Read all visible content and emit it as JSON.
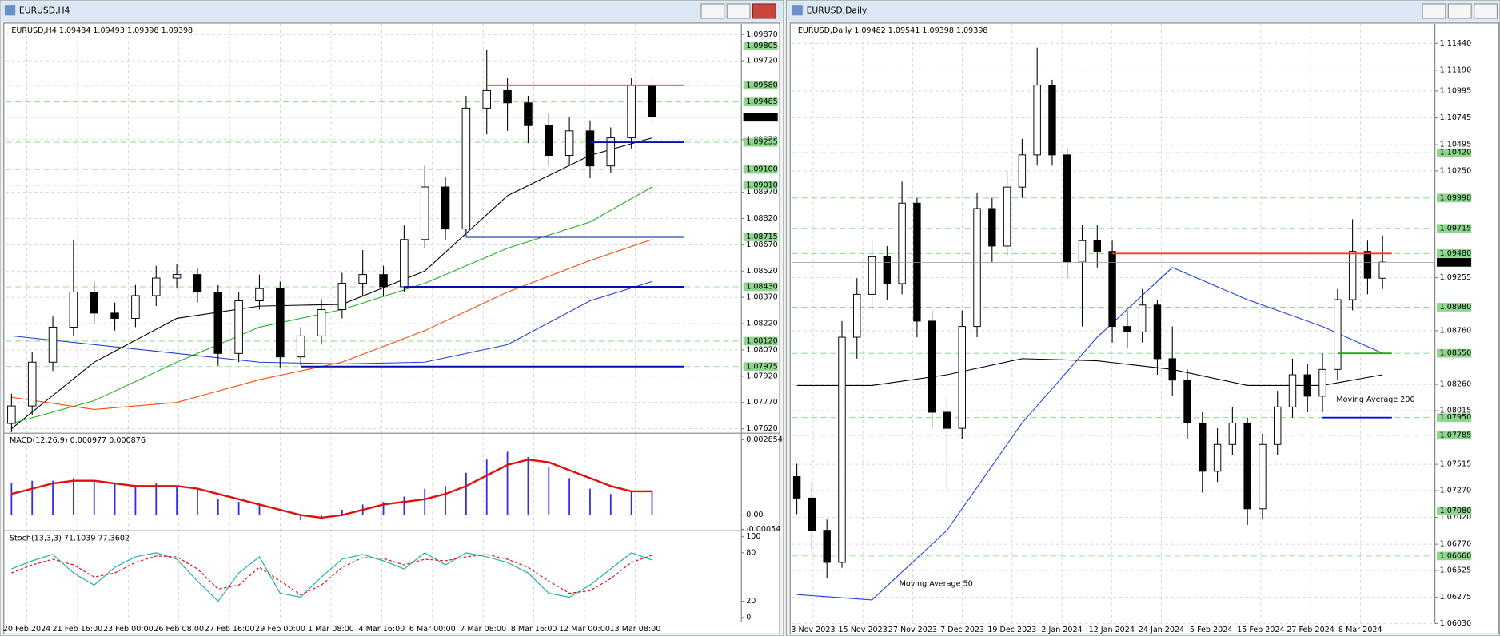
{
  "windows": [
    {
      "title": "EURUSD,H4",
      "info": "EURUSD,H4  1.09484 1.09493 1.09398 1.09398",
      "price": {
        "lim": [
          1.076,
          1.0993
        ],
        "ticks": [
          {
            "value": 1.0987,
            "label": "1.09870"
          },
          {
            "value": 1.0972,
            "label": "1.09720"
          },
          {
            "value": 1.0927,
            "label": "1.09270"
          },
          {
            "value": 1.0897,
            "label": "1.08970"
          },
          {
            "value": 1.0882,
            "label": "1.08820"
          },
          {
            "value": 1.0867,
            "label": "1.08670"
          },
          {
            "value": 1.0852,
            "label": "1.08520"
          },
          {
            "value": 1.0837,
            "label": "1.08370"
          },
          {
            "value": 1.0822,
            "label": "1.08220"
          },
          {
            "value": 1.0807,
            "label": "1.08070"
          },
          {
            "value": 1.0792,
            "label": "1.07920"
          },
          {
            "value": 1.0777,
            "label": "1.07770"
          },
          {
            "value": 1.0762,
            "label": "1.07620"
          }
        ],
        "marked": [
          {
            "value": 1.09805,
            "label": "1.09805"
          },
          {
            "value": 1.0958,
            "label": "1.09580"
          },
          {
            "value": 1.09485,
            "label": "1.09485"
          },
          {
            "value": 1.09255,
            "label": "1.09255"
          },
          {
            "value": 1.091,
            "label": "1.09100"
          },
          {
            "value": 1.0901,
            "label": "1.09010"
          },
          {
            "value": 1.08715,
            "label": "1.08715"
          },
          {
            "value": 1.0843,
            "label": "1.08430"
          },
          {
            "value": 1.0812,
            "label": "1.08120"
          },
          {
            "value": 1.07975,
            "label": "1.07975"
          }
        ],
        "current": {
          "value": 1.09398,
          "label": "1.09398"
        }
      },
      "time_labels": [
        "20 Feb 2024",
        "21 Feb 16:00",
        "23 Feb 00:00",
        "26 Feb 08:00",
        "27 Feb 16:00",
        "29 Feb 00:00",
        "1 Mar 08:00",
        "4 Mar 16:00",
        "6 Mar 00:00",
        "7 Mar 08:00",
        "8 Mar 16:00",
        "12 Mar 00:00",
        "13 Mar 08:00"
      ],
      "candles": [
        [
          1.0765,
          1.0782,
          1.076,
          1.0775
        ],
        [
          1.0775,
          1.0806,
          1.077,
          1.08
        ],
        [
          1.08,
          1.0826,
          1.0795,
          1.082
        ],
        [
          1.082,
          1.087,
          1.0815,
          1.084
        ],
        [
          1.084,
          1.0846,
          1.0822,
          1.0828
        ],
        [
          1.0828,
          1.0834,
          1.0818,
          1.0825
        ],
        [
          1.0825,
          1.0844,
          1.082,
          1.0838
        ],
        [
          1.0838,
          1.0855,
          1.0832,
          1.0848
        ],
        [
          1.0848,
          1.0856,
          1.0842,
          1.085
        ],
        [
          1.085,
          1.0854,
          1.0834,
          1.084
        ],
        [
          1.084,
          1.0844,
          1.0798,
          1.0805
        ],
        [
          1.0805,
          1.084,
          1.08,
          1.0835
        ],
        [
          1.0835,
          1.085,
          1.083,
          1.0842
        ],
        [
          1.0842,
          1.0846,
          1.0797,
          1.0803
        ],
        [
          1.0803,
          1.082,
          1.0798,
          1.0815
        ],
        [
          1.0815,
          1.0836,
          1.081,
          1.083
        ],
        [
          1.083,
          1.0851,
          1.0825,
          1.0845
        ],
        [
          1.0845,
          1.0864,
          1.0838,
          1.085
        ],
        [
          1.085,
          1.0855,
          1.0838,
          1.0843
        ],
        [
          1.0843,
          1.0878,
          1.084,
          1.087
        ],
        [
          1.087,
          1.0912,
          1.0865,
          1.09
        ],
        [
          1.09,
          1.0906,
          1.087,
          1.0876
        ],
        [
          1.0876,
          1.0952,
          1.0872,
          1.0945
        ],
        [
          1.0945,
          1.0978,
          1.093,
          1.0955
        ],
        [
          1.0955,
          1.0962,
          1.0932,
          1.0948
        ],
        [
          1.0948,
          1.0952,
          1.0925,
          1.0935
        ],
        [
          1.0935,
          1.0942,
          1.0912,
          1.0918
        ],
        [
          1.0918,
          1.094,
          1.0912,
          1.0932
        ],
        [
          1.0932,
          1.0938,
          1.0905,
          1.0912
        ],
        [
          1.0912,
          1.0934,
          1.0908,
          1.0928
        ],
        [
          1.0928,
          1.0962,
          1.0922,
          1.0958
        ],
        [
          1.0958,
          1.0962,
          1.0936,
          1.094
        ]
      ],
      "ma_x": [
        0,
        4,
        8,
        12,
        16,
        20,
        24,
        28,
        31
      ],
      "mas": [
        {
          "color": "#000000",
          "values": [
            1.0762,
            1.08,
            1.0825,
            1.0832,
            1.0833,
            1.0852,
            1.0895,
            1.0918,
            1.0928
          ]
        },
        {
          "color": "#22b022",
          "values": [
            1.0765,
            1.0778,
            1.08,
            1.082,
            1.083,
            1.0845,
            1.0865,
            1.088,
            1.09
          ]
        },
        {
          "color": "#ff4500",
          "values": [
            1.078,
            1.0773,
            1.0777,
            1.079,
            1.08,
            1.0818,
            1.084,
            1.0858,
            1.087
          ]
        },
        {
          "color": "#1f3fd6",
          "values": [
            1.0815,
            1.081,
            1.0805,
            1.08,
            1.0799,
            1.08,
            1.081,
            1.0835,
            1.0846
          ]
        }
      ],
      "lines": [
        {
          "value": 1.0958,
          "color": "#ff3b1f"
        },
        {
          "value": 1.09255,
          "color": "#0010b0"
        },
        {
          "value": 1.08715,
          "color": "#0010b0"
        },
        {
          "value": 1.0843,
          "color": "#0010b0"
        },
        {
          "value": 1.07975,
          "color": "#0010b0"
        }
      ],
      "annotations": [],
      "macd": {
        "label": "MACD(12,26,9) 0.000977 0.000876",
        "ylim": [
          -0.00052,
          0.00303
        ],
        "ticks": [
          0.002854,
          {
            "value": 0,
            "label": "0.00"
          },
          -0.00054
        ],
        "hist_color": "#3030e0",
        "signal_color": "#e01010",
        "hist": [
          0.0012,
          0.0013,
          0.0013,
          0.0014,
          0.0013,
          0.0012,
          0.0011,
          0.0012,
          0.0011,
          0.001,
          0.0006,
          0.0005,
          0.0004,
          0.0,
          -0.0002,
          -0.0001,
          0.0002,
          0.0004,
          0.0005,
          0.0007,
          0.001,
          0.0011,
          0.0016,
          0.0021,
          0.0024,
          0.0022,
          0.0018,
          0.0014,
          0.001,
          0.0008,
          0.0009,
          0.0009
        ],
        "signal": [
          0.0008,
          0.001,
          0.0012,
          0.0013,
          0.0013,
          0.0012,
          0.0011,
          0.0011,
          0.0011,
          0.001,
          0.0008,
          0.0006,
          0.0004,
          0.0002,
          0.0,
          -0.0001,
          0.0,
          0.0002,
          0.0004,
          0.0005,
          0.0006,
          0.0008,
          0.0011,
          0.0015,
          0.0019,
          0.0021,
          0.002,
          0.0017,
          0.0014,
          0.0011,
          0.0009,
          0.0009
        ]
      },
      "stoch": {
        "label": "Stoch(13,3,3) 71.1039 77.3602",
        "ylim": [
          -5,
          105
        ],
        "ticks": [
          100,
          80,
          20,
          0
        ],
        "main_color": "#20b2aa",
        "signal_color": "#e01010",
        "main": [
          60,
          70,
          78,
          55,
          40,
          62,
          75,
          80,
          72,
          45,
          20,
          55,
          75,
          30,
          25,
          50,
          72,
          78,
          70,
          60,
          80,
          65,
          80,
          75,
          68,
          55,
          30,
          25,
          40,
          60,
          80,
          71
        ],
        "signal": [
          55,
          65,
          72,
          65,
          50,
          55,
          68,
          76,
          75,
          60,
          35,
          40,
          62,
          45,
          28,
          40,
          62,
          74,
          73,
          65,
          72,
          70,
          75,
          78,
          72,
          62,
          45,
          30,
          33,
          48,
          68,
          77
        ]
      }
    },
    {
      "title": "EURUSD,Daily",
      "info": "EURUSD,Daily  1.09482 1.09541 1.09398 1.09398",
      "price": {
        "lim": [
          1.0596,
          1.1162
        ],
        "ticks": [
          {
            "value": 1.1144,
            "label": "1.11440"
          },
          {
            "value": 1.1119,
            "label": "1.11190"
          },
          {
            "value": 1.10995,
            "label": "1.10995"
          },
          {
            "value": 1.10745,
            "label": "1.10745"
          },
          {
            "value": 1.10495,
            "label": "1.10495"
          },
          {
            "value": 1.1025,
            "label": "1.10250"
          },
          {
            "value": 1.09255,
            "label": "1.09255"
          },
          {
            "value": 1.0876,
            "label": "1.08760"
          },
          {
            "value": 1.0826,
            "label": "1.08260"
          },
          {
            "value": 1.08015,
            "label": "1.08015"
          },
          {
            "value": 1.07515,
            "label": "1.07515"
          },
          {
            "value": 1.0727,
            "label": "1.07270"
          },
          {
            "value": 1.0702,
            "label": "1.07020"
          },
          {
            "value": 1.0677,
            "label": "1.06770"
          },
          {
            "value": 1.06525,
            "label": "1.06525"
          },
          {
            "value": 1.06275,
            "label": "1.06275"
          },
          {
            "value": 1.0603,
            "label": "1.06030"
          }
        ],
        "marked": [
          {
            "value": 1.1042,
            "label": "1.10420"
          },
          {
            "value": 1.09998,
            "label": "1.09998"
          },
          {
            "value": 1.09715,
            "label": "1.09715"
          },
          {
            "value": 1.0948,
            "label": "1.09480"
          },
          {
            "value": 1.0898,
            "label": "1.08980"
          },
          {
            "value": 1.0855,
            "label": "1.08550"
          },
          {
            "value": 1.0795,
            "label": "1.07950"
          },
          {
            "value": 1.07785,
            "label": "1.07785"
          },
          {
            "value": 1.0708,
            "label": "1.07080"
          },
          {
            "value": 1.0666,
            "label": "1.06660"
          }
        ],
        "current": {
          "value": 1.09398,
          "label": "1.09398"
        }
      },
      "time_labels": [
        "3 Nov 2023",
        "15 Nov 2023",
        "27 Nov 2023",
        "7 Dec 2023",
        "19 Dec 2023",
        "2 Jan 2024",
        "12 Jan 2024",
        "24 Jan 2024",
        "5 Feb 2024",
        "15 Feb 2024",
        "27 Feb 2024",
        "8 Mar 2024"
      ],
      "candles": [
        [
          1.074,
          1.0752,
          1.0705,
          1.072
        ],
        [
          1.072,
          1.0735,
          1.0672,
          1.069
        ],
        [
          1.069,
          1.07,
          1.0645,
          1.066
        ],
        [
          1.066,
          1.0885,
          1.0655,
          1.087
        ],
        [
          1.087,
          1.0925,
          1.085,
          1.091
        ],
        [
          1.091,
          1.096,
          1.0895,
          1.0945
        ],
        [
          1.0945,
          1.0955,
          1.0905,
          1.092
        ],
        [
          1.092,
          1.1015,
          1.091,
          1.0995
        ],
        [
          1.0995,
          1.1,
          1.087,
          1.0885
        ],
        [
          1.0885,
          1.0895,
          1.0785,
          1.08
        ],
        [
          1.08,
          1.0815,
          1.0725,
          1.0785
        ],
        [
          1.0785,
          1.0895,
          1.0775,
          1.088
        ],
        [
          1.088,
          1.1005,
          1.087,
          1.099
        ],
        [
          1.099,
          1.1,
          1.094,
          1.0955
        ],
        [
          1.0955,
          1.1025,
          1.0945,
          1.101
        ],
        [
          1.101,
          1.1055,
          1.1,
          1.104
        ],
        [
          1.104,
          1.114,
          1.103,
          1.1105
        ],
        [
          1.1105,
          1.111,
          1.103,
          1.104
        ],
        [
          1.104,
          1.1045,
          1.0925,
          1.094
        ],
        [
          1.094,
          1.0975,
          1.088,
          1.096
        ],
        [
          1.096,
          1.0975,
          1.0935,
          1.095
        ],
        [
          1.095,
          1.096,
          1.0865,
          1.088
        ],
        [
          1.088,
          1.0895,
          1.086,
          1.0875
        ],
        [
          1.0875,
          1.0915,
          1.0865,
          1.09
        ],
        [
          1.09,
          1.0905,
          1.0835,
          1.085
        ],
        [
          1.085,
          1.088,
          1.0815,
          1.083
        ],
        [
          1.083,
          1.084,
          1.0775,
          1.079
        ],
        [
          1.079,
          1.08,
          1.0725,
          1.0745
        ],
        [
          1.0745,
          1.0785,
          1.0735,
          1.077
        ],
        [
          1.077,
          1.0805,
          1.076,
          1.079
        ],
        [
          1.079,
          1.0795,
          1.0695,
          1.071
        ],
        [
          1.071,
          1.078,
          1.07,
          1.077
        ],
        [
          1.077,
          1.082,
          1.076,
          1.0805
        ],
        [
          1.0805,
          1.085,
          1.0795,
          1.0835
        ],
        [
          1.0835,
          1.0845,
          1.08,
          1.0815
        ],
        [
          1.0815,
          1.0855,
          1.08,
          1.084
        ],
        [
          1.084,
          1.0915,
          1.083,
          1.0905
        ],
        [
          1.0905,
          1.098,
          1.0895,
          1.095
        ],
        [
          1.095,
          1.096,
          1.091,
          1.0925
        ],
        [
          1.0925,
          1.0965,
          1.0915,
          1.094
        ]
      ],
      "ma_x": [
        0,
        5,
        10,
        15,
        20,
        25,
        30,
        35,
        39
      ],
      "mas": [
        {
          "color": "#2040e0",
          "values": [
            1.063,
            1.0625,
            1.069,
            1.079,
            1.087,
            1.0935,
            1.0905,
            1.088,
            1.0855
          ]
        },
        {
          "color": "#000000",
          "values": [
            1.0825,
            1.0825,
            1.0835,
            1.085,
            1.0848,
            1.084,
            1.0825,
            1.0825,
            1.0835
          ]
        }
      ],
      "lines": [
        {
          "value": 1.0948,
          "color": "#ff3b1f"
        },
        {
          "value": 1.0855,
          "color": "#10b010"
        },
        {
          "value": 1.0795,
          "color": "#0010e0"
        }
      ],
      "annotations": [
        {
          "text": "Moving Average 200",
          "color": "#000000"
        },
        {
          "text": "Moving Average 50",
          "color": "#1010d0"
        }
      ]
    }
  ]
}
